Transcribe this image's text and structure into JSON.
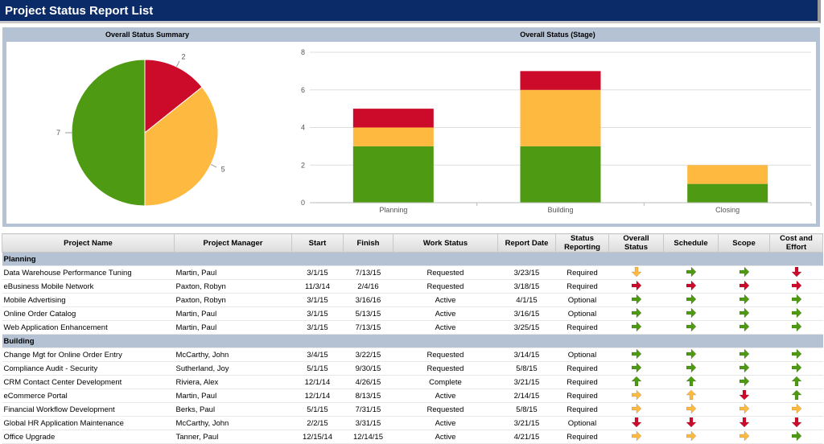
{
  "header": {
    "title": "Project Status Report List"
  },
  "chart_data": [
    {
      "type": "pie",
      "title": "Overall Status Summary",
      "values": [
        2,
        5,
        7
      ],
      "colors": [
        "#cc0a2a",
        "#fdb940",
        "#4e9a12"
      ]
    },
    {
      "type": "bar",
      "title": "Overall Status (Stage)",
      "categories": [
        "Planning",
        "Building",
        "Closing"
      ],
      "series": [
        {
          "color": "#4e9a12",
          "values": [
            3,
            3,
            1
          ]
        },
        {
          "color": "#fdb940",
          "values": [
            1,
            3,
            1
          ]
        },
        {
          "color": "#cc0a2a",
          "values": [
            1,
            1,
            0
          ]
        }
      ],
      "ylim": [
        0,
        8
      ],
      "yticks": [
        0,
        2,
        4,
        6,
        8
      ],
      "grid": true
    }
  ],
  "table": {
    "columns": [
      "Project Name",
      "Project Manager",
      "Start",
      "Finish",
      "Work Status",
      "Report Date",
      "Status Reporting",
      "Overall Status",
      "Schedule",
      "Scope",
      "Cost and Effort"
    ],
    "groups": [
      {
        "name": "Planning",
        "rows": [
          [
            "Data Warehouse Performance Tuning",
            "Martin, Paul",
            "3/1/15",
            "7/13/15",
            "Requested",
            "3/23/15",
            "Required"
          ],
          [
            "eBusiness Mobile Network",
            "Paxton, Robyn",
            "11/3/14",
            "2/4/16",
            "Requested",
            "3/18/15",
            "Required"
          ],
          [
            "Mobile Advertising",
            "Paxton, Robyn",
            "3/1/15",
            "3/16/16",
            "Active",
            "4/1/15",
            "Optional"
          ],
          [
            "Online Order Catalog",
            "Martin, Paul",
            "3/1/15",
            "5/13/15",
            "Active",
            "3/16/15",
            "Optional"
          ],
          [
            "Web Application Enhancement",
            "Martin, Paul",
            "3/1/15",
            "7/13/15",
            "Active",
            "3/25/15",
            "Required"
          ]
        ]
      },
      {
        "name": "Building",
        "rows": [
          [
            "Change Mgt for Online Order Entry",
            "McCarthy, John",
            "3/4/15",
            "3/22/15",
            "Requested",
            "3/14/15",
            "Optional"
          ],
          [
            "Compliance Audit - Security",
            "Sutherland, Joy",
            "5/1/15",
            "9/30/15",
            "Requested",
            "5/8/15",
            "Required"
          ],
          [
            "CRM Contact Center Development",
            "Riviera, Alex",
            "12/1/14",
            "4/26/15",
            "Complete",
            "3/21/15",
            "Required"
          ],
          [
            "eCommerce Portal",
            "Martin, Paul",
            "12/1/14",
            "8/13/15",
            "Active",
            "2/14/15",
            "Required"
          ],
          [
            "Financial Workflow Development",
            "Berks, Paul",
            "5/1/15",
            "7/31/15",
            "Requested",
            "5/8/15",
            "Required"
          ],
          [
            "Global HR Application Maintenance",
            "McCarthy, John",
            "2/2/15",
            "3/31/15",
            "Active",
            "3/21/15",
            "Optional"
          ],
          [
            "Office Upgrade",
            "Tanner, Paul",
            "12/15/14",
            "12/14/15",
            "Active",
            "4/21/15",
            "Required"
          ]
        ]
      }
    ]
  }
}
